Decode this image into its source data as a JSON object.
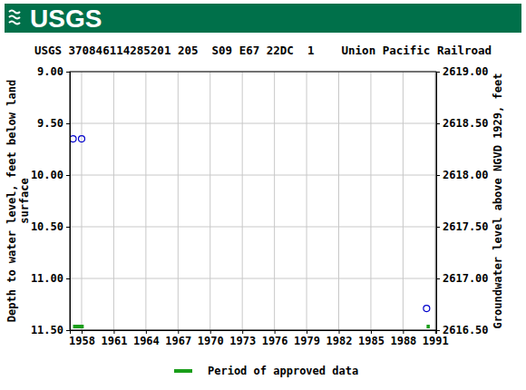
{
  "header": {
    "logo": "USGS"
  },
  "chart_data": {
    "type": "scatter",
    "title": "USGS 370846114285201 205  S09 E67 22DC  1    Union Pacific Railroad",
    "ylabel": [
      "Depth to water level, feet below land",
      "surface"
    ],
    "y2label": "Groundwater level above NGVD 1929, feet",
    "x": [
      1957.2,
      1958.0,
      1990.2
    ],
    "values": [
      9.65,
      9.65,
      11.29
    ],
    "color": "#0000cc",
    "marker": "circle-open",
    "xlim": [
      1956.9,
      1991.1
    ],
    "xticks": [
      1958,
      1961,
      1964,
      1967,
      1970,
      1973,
      1976,
      1979,
      1982,
      1985,
      1988,
      1991
    ],
    "ylim": [
      11.5,
      9.0
    ],
    "yticks": [
      {
        "value": 9.0,
        "label": "9.00"
      },
      {
        "value": 9.5,
        "label": "9.50"
      },
      {
        "value": 10.0,
        "label": "10.00"
      },
      {
        "value": 10.5,
        "label": "10.50"
      },
      {
        "value": 11.0,
        "label": "11.00"
      },
      {
        "value": 11.5,
        "label": "11.50"
      }
    ],
    "y2lim": [
      2616.5,
      2619.0
    ],
    "y2ticks": [
      {
        "value": 2619.0,
        "label": "2619.00"
      },
      {
        "value": 2618.5,
        "label": "2618.50"
      },
      {
        "value": 2618.0,
        "label": "2618.00"
      },
      {
        "value": 2617.5,
        "label": "2617.50"
      },
      {
        "value": 2617.0,
        "label": "2617.00"
      },
      {
        "value": 2616.5,
        "label": "2616.50"
      }
    ],
    "grid": true,
    "legend": "bottom",
    "approved_periods": {
      "label": "Period of approved data",
      "color": "#1a9e1a",
      "ranges": [
        [
          1957.2,
          1958.2
        ],
        [
          1990.2,
          1990.5
        ]
      ]
    }
  }
}
